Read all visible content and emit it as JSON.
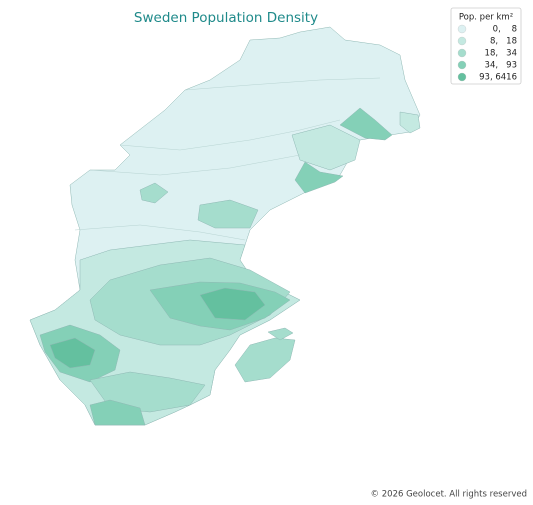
{
  "title": "Sweden Population Density",
  "legend": {
    "title": "Pop. per km²",
    "items": [
      {
        "label": "0,    8",
        "color": "#ddf1f2"
      },
      {
        "label": "8,   18",
        "color": "#c4e9e1"
      },
      {
        "label": "18,   34",
        "color": "#a5ddcd"
      },
      {
        "label": "34,   93",
        "color": "#84d0b7"
      },
      {
        "label": "93, 6416",
        "color": "#64c09f"
      }
    ]
  },
  "copyright": "© 2026 Geolocet. All rights reserved"
}
